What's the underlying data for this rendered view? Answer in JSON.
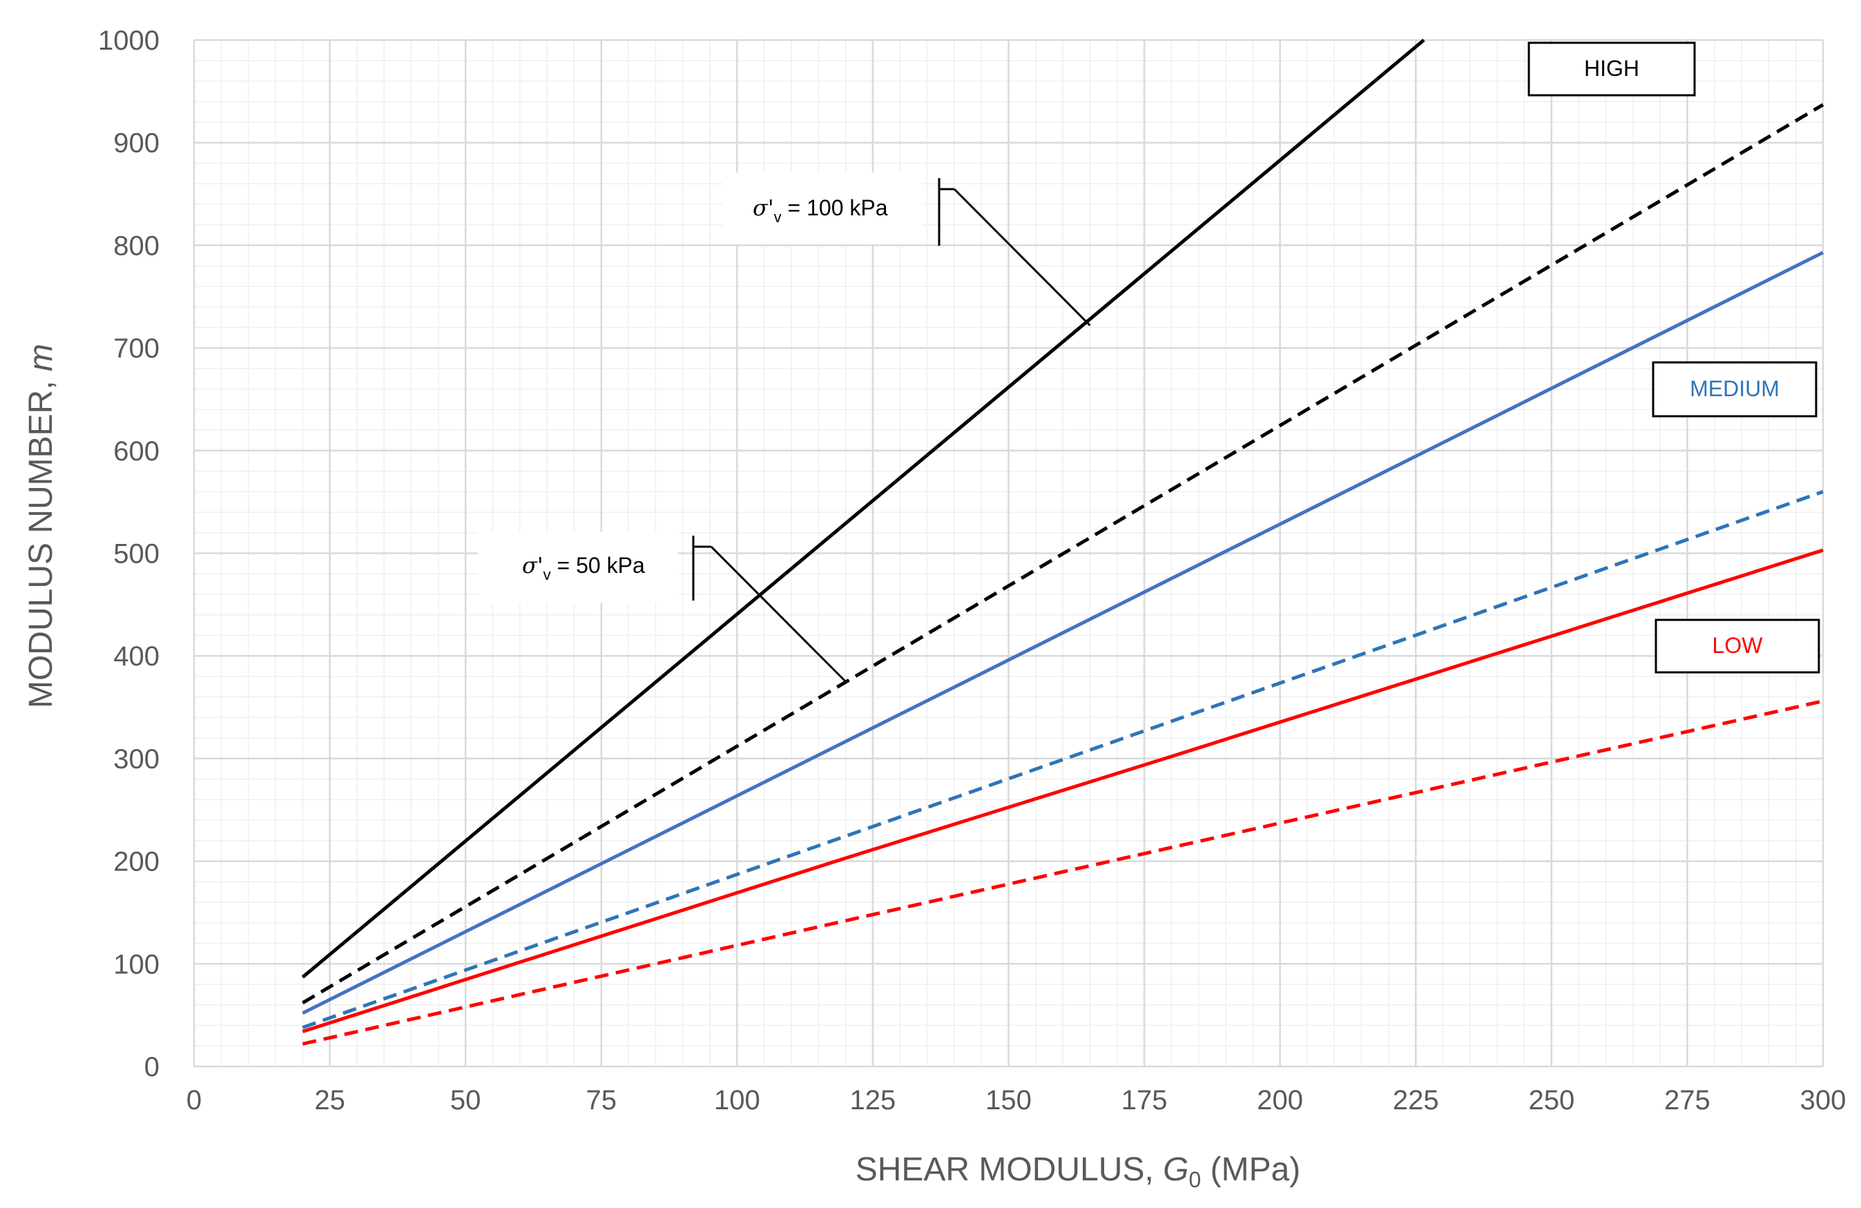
{
  "chart_data": {
    "type": "line",
    "title": "",
    "xlabel": {
      "prefix": "SHEAR MODULUS, ",
      "symbol": "G",
      "subscript": "0",
      "suffix": " (MPa)"
    },
    "ylabel": {
      "prefix": "MODULUS NUMBER, ",
      "symbol": "m"
    },
    "xlim": [
      0,
      300
    ],
    "ylim": [
      0,
      1000
    ],
    "x_major_ticks": [
      0,
      25,
      50,
      75,
      100,
      125,
      150,
      175,
      200,
      225,
      250,
      275,
      300
    ],
    "x_tick_labels": [
      "0",
      "25",
      "50",
      "75",
      "100",
      "125",
      "150",
      "175",
      "200",
      "225",
      "250",
      "275",
      "300"
    ],
    "y_major_ticks": [
      0,
      100,
      200,
      300,
      400,
      500,
      600,
      700,
      800,
      900,
      1000
    ],
    "y_tick_labels": [
      "0",
      "100",
      "200",
      "300",
      "400",
      "500",
      "600",
      "700",
      "800",
      "900",
      "1000"
    ],
    "grid": true,
    "series": [
      {
        "name": "HIGH σ'v = 100 kPa",
        "group": "HIGH",
        "stress": "100 kPa",
        "color": "#000000",
        "dashed": false,
        "x": [
          20,
          226.5
        ],
        "y": [
          87,
          1000
        ]
      },
      {
        "name": "HIGH σ'v = 50 kPa",
        "group": "HIGH",
        "stress": "50 kPa",
        "color": "#000000",
        "dashed": true,
        "x": [
          20,
          300
        ],
        "y": [
          62,
          937
        ]
      },
      {
        "name": "MEDIUM σ'v = 100 kPa",
        "group": "MEDIUM",
        "stress": "100 kPa",
        "color": "#4472C4",
        "dashed": false,
        "x": [
          20,
          300
        ],
        "y": [
          52,
          793
        ]
      },
      {
        "name": "MEDIUM σ'v = 50 kPa",
        "group": "MEDIUM",
        "stress": "50 kPa",
        "color": "#2E75B6",
        "dashed": true,
        "x": [
          20,
          300
        ],
        "y": [
          38,
          560
        ]
      },
      {
        "name": "LOW σ'v = 100 kPa",
        "group": "LOW",
        "stress": "100 kPa",
        "color": "#FF0000",
        "dashed": false,
        "x": [
          20,
          120,
          180,
          300
        ],
        "y": [
          34,
          203,
          302,
          503
        ]
      },
      {
        "name": "LOW σ'v = 50 kPa",
        "group": "LOW",
        "stress": "50 kPa",
        "color": "#FF0000",
        "dashed": true,
        "x": [
          20,
          120,
          300
        ],
        "y": [
          22,
          142,
          356
        ]
      }
    ],
    "legend_boxes": [
      {
        "label": "HIGH",
        "color": "#000000",
        "placement": "top-right"
      },
      {
        "label": "MEDIUM",
        "color": "#2E75B6",
        "placement": "upper-right"
      },
      {
        "label": "LOW",
        "color": "#FF0000",
        "placement": "middle-right"
      }
    ],
    "annotations": [
      {
        "symbol": "σ'",
        "subscript": "v",
        "text": " = 100 kPa",
        "points_to_x": 165,
        "points_to_y": 722
      },
      {
        "symbol": "σ'",
        "subscript": "v",
        "text": " = 50 kPa",
        "points_to_x": 120,
        "points_to_y": 375
      }
    ]
  }
}
